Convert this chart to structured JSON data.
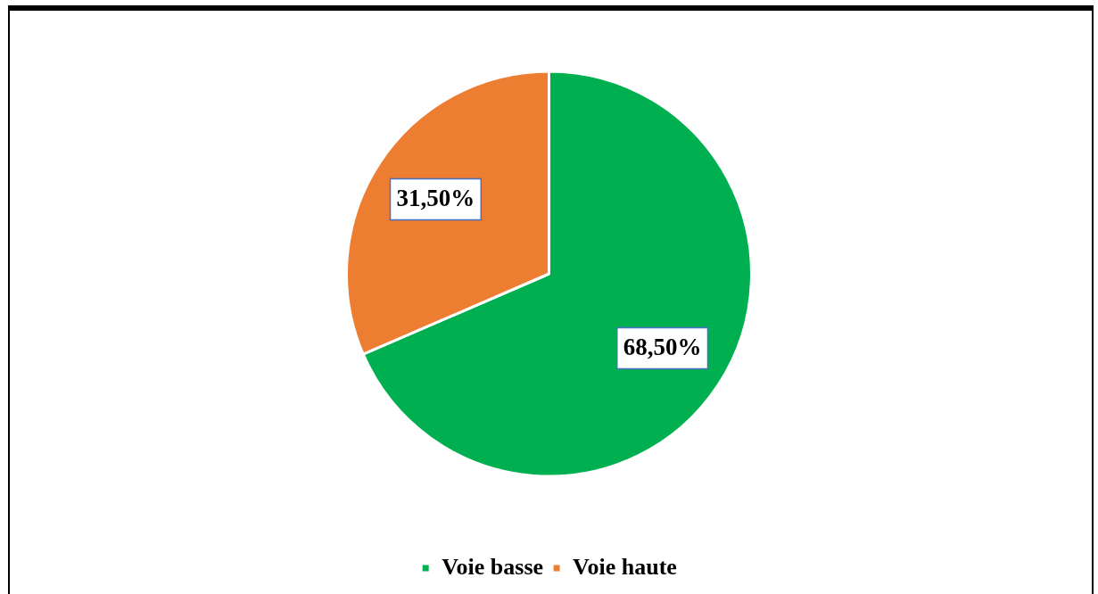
{
  "chart_data": {
    "type": "pie",
    "categories": [
      "Voie basse",
      "Voie haute"
    ],
    "values": [
      68.5,
      31.5
    ],
    "colors": [
      "#00b050",
      "#ed7d31"
    ],
    "value_labels": [
      "68,50%",
      "31,50%"
    ],
    "legend": "bottom"
  }
}
